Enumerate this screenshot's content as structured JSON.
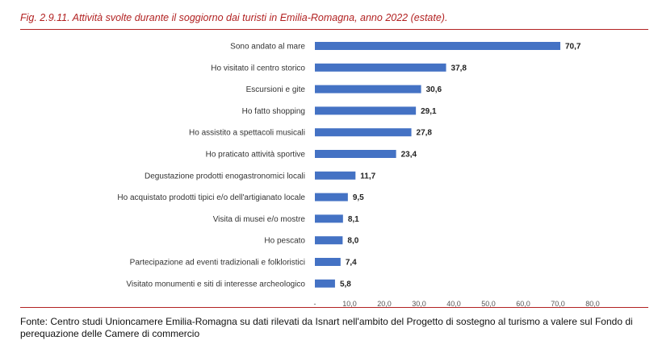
{
  "figure": {
    "title": "Fig. 2.9.11.  Attività svolte durante il soggiorno dai turisti in Emilia-Romagna, anno 2022 (estate).",
    "source": "Fonte: Centro studi Unioncamere Emilia-Romagna su dati rilevati da Isnart nell'ambito del Progetto di sostegno al turismo a valere sul Fondo di perequazione delle Camere di commercio"
  },
  "chart_data": {
    "type": "bar",
    "orientation": "horizontal",
    "categories": [
      "Sono andato al mare",
      "Ho visitato il centro storico",
      "Escursioni e gite",
      "Ho fatto shopping",
      "Ho assistito a spettacoli musicali",
      "Ho praticato attività sportive",
      "Degustazione prodotti enogastronomici locali",
      "Ho acquistato prodotti tipici e/o dell'artigianato locale",
      "Visita di musei e/o mostre",
      "Ho pescato",
      "Partecipazione ad eventi tradizionali e folkloristici",
      "Visitato monumenti e siti di interesse archeologico"
    ],
    "values": [
      70.7,
      37.8,
      30.6,
      29.1,
      27.8,
      23.4,
      11.7,
      9.5,
      8.1,
      8.0,
      7.4,
      5.8
    ],
    "value_labels": [
      "70,7",
      "37,8",
      "30,6",
      "29,1",
      "27,8",
      "23,4",
      "11,7",
      "9,5",
      "8,1",
      "8,0",
      "7,4",
      "5,8"
    ],
    "x_ticks": [
      "-",
      "10,0",
      "20,0",
      "30,0",
      "40,0",
      "50,0",
      "60,0",
      "70,0",
      "80,0"
    ],
    "xlim": [
      0,
      80
    ],
    "bar_color": "#4472c4",
    "grid": false,
    "legend": "none"
  }
}
